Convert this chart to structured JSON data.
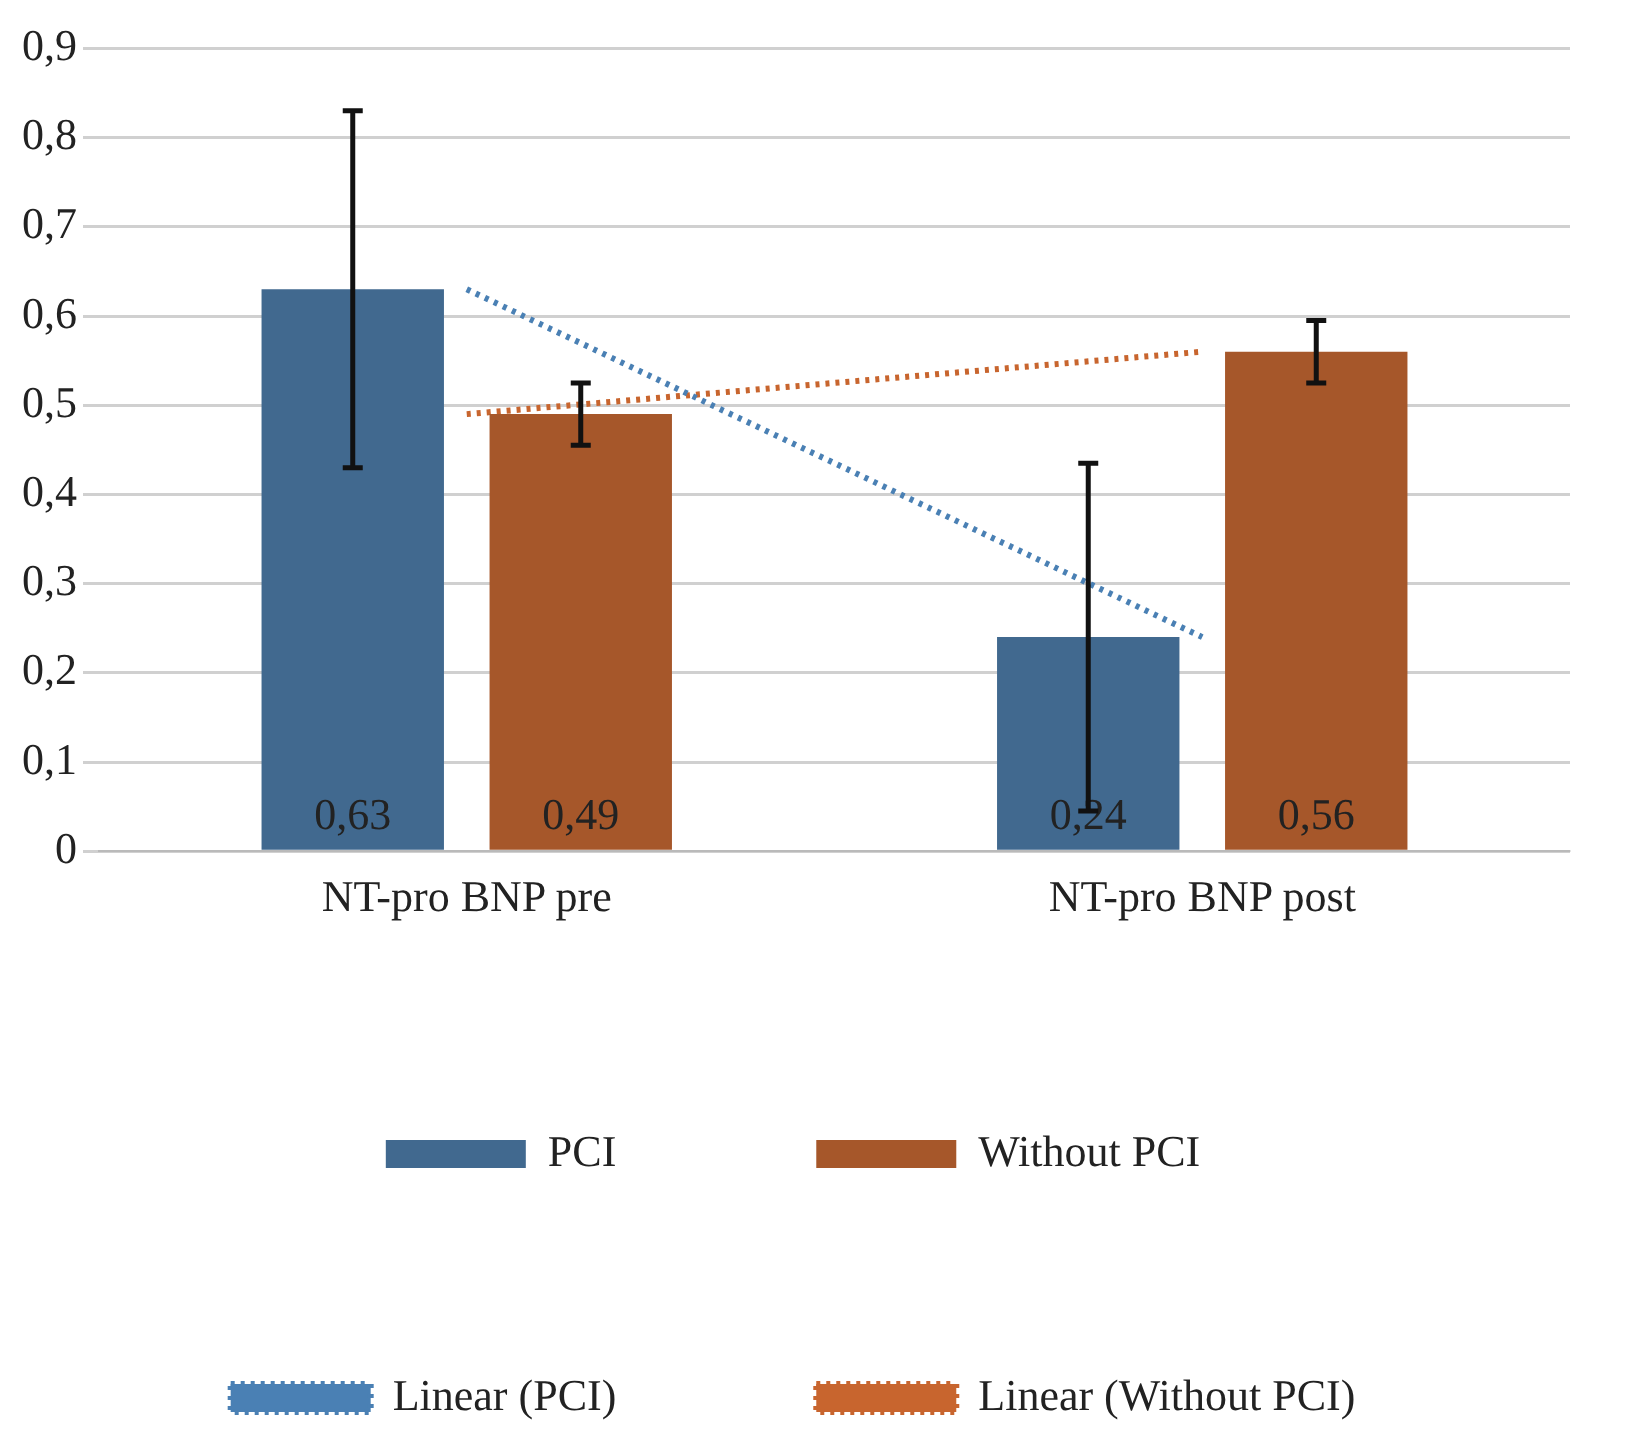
{
  "chart_data": {
    "type": "bar",
    "categories": [
      "NT-pro BNP pre",
      "NT-pro BNP post"
    ],
    "series": [
      {
        "name": "PCI",
        "color": "#41698f",
        "values": [
          0.63,
          0.24
        ],
        "errors": [
          0.2,
          0.195
        ],
        "value_labels": [
          "0,63",
          "0,24"
        ]
      },
      {
        "name": "Without PCI",
        "color": "#a6572a",
        "values": [
          0.49,
          0.56
        ],
        "errors": [
          0.035,
          0.035
        ],
        "value_labels": [
          "0,49",
          "0,56"
        ]
      },
      {
        "name": "Linear (PCI)",
        "type": "line",
        "color": "#4a80b4",
        "values": [
          0.63,
          0.24
        ],
        "line_style": "dotted"
      },
      {
        "name": "Linear (Without PCI)",
        "type": "line",
        "color": "#c8652e",
        "values": [
          0.49,
          0.56
        ],
        "line_style": "dotted"
      }
    ],
    "ylim": [
      0,
      0.9
    ],
    "yticks": [
      0,
      {
        "value": 0.1,
        "label": "0,1"
      },
      {
        "value": 0.2,
        "label": "0,2"
      },
      {
        "value": 0.3,
        "label": "0,3"
      },
      {
        "value": 0.4,
        "label": "0,4"
      },
      {
        "value": 0.5,
        "label": "0,5"
      },
      {
        "value": 0.6,
        "label": "0,6"
      },
      {
        "value": 0.7,
        "label": "0,7"
      },
      {
        "value": 0.8,
        "label": "0,8"
      },
      {
        "value": 0.9,
        "label": "0,9"
      }
    ],
    "grid": "y",
    "legend": "bottom",
    "marker": "none"
  }
}
